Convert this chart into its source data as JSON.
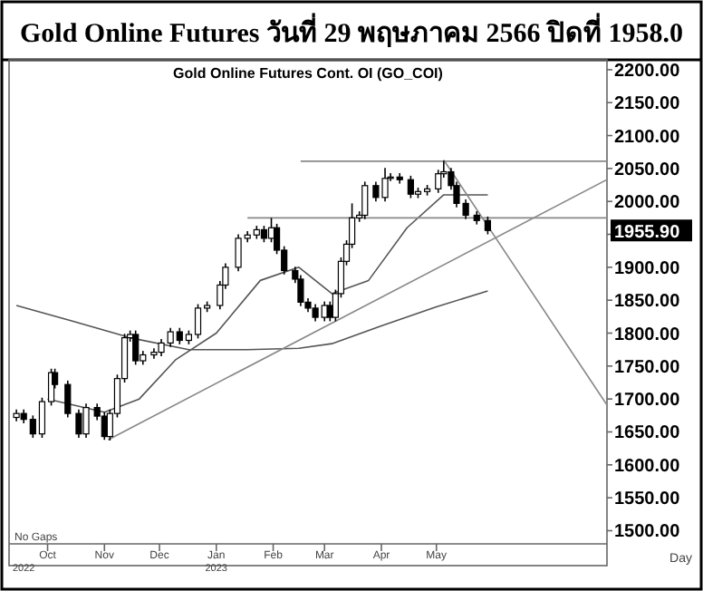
{
  "chart_data": {
    "type": "candlestick",
    "title": "Gold Online Futures วันที่ 29 พฤษภาคม 2566 ปิดที่ 1958.0",
    "subtitle": "Gold Online Futures Cont. OI (GO_COI)",
    "annotations": [
      "No Gaps",
      "Day",
      "2022",
      "2023",
      "1955.90"
    ],
    "x": [
      "2022-09-14",
      "2022-09-18",
      "2022-09-23",
      "2022-09-28",
      "2022-10-03",
      "2022-10-05",
      "2022-10-12",
      "2022-10-18",
      "2022-10-22",
      "2022-10-28",
      "2022-11-01",
      "2022-11-04",
      "2022-11-08",
      "2022-11-12",
      "2022-11-15",
      "2022-11-18",
      "2022-11-22",
      "2022-11-28",
      "2022-12-02",
      "2022-12-07",
      "2022-12-12",
      "2022-12-17",
      "2022-12-22",
      "2022-12-27",
      "2023-01-03",
      "2023-01-06",
      "2023-01-13",
      "2023-01-18",
      "2023-01-23",
      "2023-01-27",
      "2023-01-31",
      "2023-02-03",
      "2023-02-07",
      "2023-02-13",
      "2023-02-16",
      "2023-02-20",
      "2023-02-24",
      "2023-03-01",
      "2023-03-04",
      "2023-03-07",
      "2023-03-10",
      "2023-03-13",
      "2023-03-16",
      "2023-03-20",
      "2023-03-23",
      "2023-03-29",
      "2023-04-03",
      "2023-04-06",
      "2023-04-11",
      "2023-04-17",
      "2023-04-21",
      "2023-04-26",
      "2023-05-02",
      "2023-05-05",
      "2023-05-09",
      "2023-05-12",
      "2023-05-17",
      "2023-05-23",
      "2023-05-29"
    ],
    "ohlc": [
      [
        1672,
        1684,
        1666,
        1678
      ],
      [
        1678,
        1684,
        1663,
        1669
      ],
      [
        1669,
        1675,
        1641,
        1647
      ],
      [
        1647,
        1702,
        1641,
        1696
      ],
      [
        1696,
        1746,
        1690,
        1740
      ],
      [
        1740,
        1746,
        1716,
        1722
      ],
      [
        1722,
        1728,
        1672,
        1678
      ],
      [
        1678,
        1684,
        1641,
        1647
      ],
      [
        1647,
        1693,
        1641,
        1687
      ],
      [
        1687,
        1693,
        1668,
        1674
      ],
      [
        1674,
        1680,
        1638,
        1643
      ],
      [
        1643,
        1684,
        1637,
        1678
      ],
      [
        1678,
        1737,
        1672,
        1731
      ],
      [
        1731,
        1799,
        1725,
        1793
      ],
      [
        1793,
        1804,
        1787,
        1798
      ],
      [
        1798,
        1804,
        1752,
        1758
      ],
      [
        1758,
        1773,
        1752,
        1767
      ],
      [
        1767,
        1777,
        1761,
        1771
      ],
      [
        1771,
        1791,
        1765,
        1785
      ],
      [
        1785,
        1808,
        1779,
        1802
      ],
      [
        1802,
        1808,
        1783,
        1789
      ],
      [
        1789,
        1804,
        1783,
        1798
      ],
      [
        1798,
        1844,
        1792,
        1838
      ],
      [
        1838,
        1848,
        1832,
        1842
      ],
      [
        1842,
        1879,
        1836,
        1873
      ],
      [
        1873,
        1906,
        1867,
        1900
      ],
      [
        1900,
        1950,
        1894,
        1944
      ],
      [
        1944,
        1955,
        1938,
        1949
      ],
      [
        1949,
        1963,
        1943,
        1957
      ],
      [
        1957,
        1963,
        1938,
        1944
      ],
      [
        1944,
        1975,
        1938,
        1960
      ],
      [
        1960,
        1966,
        1920,
        1926
      ],
      [
        1926,
        1932,
        1889,
        1895
      ],
      [
        1895,
        1901,
        1876,
        1882
      ],
      [
        1882,
        1888,
        1841,
        1847
      ],
      [
        1847,
        1853,
        1832,
        1838
      ],
      [
        1838,
        1844,
        1818,
        1824
      ],
      [
        1824,
        1848,
        1818,
        1842
      ],
      [
        1842,
        1848,
        1818,
        1824
      ],
      [
        1824,
        1866,
        1818,
        1860
      ],
      [
        1860,
        1915,
        1854,
        1909
      ],
      [
        1909,
        1941,
        1903,
        1935
      ],
      [
        1935,
        1997,
        1929,
        1975
      ],
      [
        1975,
        1985,
        1969,
        1979
      ],
      [
        1979,
        2030,
        1973,
        2024
      ],
      [
        2024,
        2030,
        2000,
        2006
      ],
      [
        2006,
        2051,
        2000,
        2035
      ],
      [
        2035,
        2043,
        2031,
        2037
      ],
      [
        2037,
        2043,
        2027,
        2033
      ],
      [
        2033,
        2039,
        2005,
        2011
      ],
      [
        2011,
        2021,
        2005,
        2015
      ],
      [
        2015,
        2025,
        2009,
        2019
      ],
      [
        2019,
        2048,
        2013,
        2042
      ],
      [
        2042,
        2062,
        2036,
        2045
      ],
      [
        2045,
        2051,
        2018,
        2024
      ],
      [
        2024,
        2030,
        1991,
        1997
      ],
      [
        1997,
        2003,
        1973,
        1979
      ],
      [
        1979,
        1985,
        1965,
        1971
      ],
      [
        1971,
        1977,
        1950,
        1955.9
      ]
    ],
    "series": [
      {
        "type": "line",
        "color": "#555555",
        "x": [
          "2022-09-14",
          "2022-10-15",
          "2022-11-15",
          "2022-12-17",
          "2023-01-18",
          "2023-02-15",
          "2023-03-05",
          "2023-04-01",
          "2023-05-01",
          "2023-05-29"
        ],
        "values": [
          1842,
          1818,
          1793,
          1775,
          1775,
          1777,
          1784,
          1811,
          1840,
          1864
        ]
      },
      {
        "type": "line",
        "color": "#555555",
        "x": [
          "2022-10-01",
          "2022-11-01",
          "2022-11-20",
          "2022-12-10",
          "2023-01-01",
          "2023-01-25",
          "2023-02-15",
          "2023-03-05",
          "2023-03-25",
          "2023-04-15",
          "2023-05-05",
          "2023-05-29"
        ],
        "values": [
          1700,
          1680,
          1700,
          1760,
          1800,
          1880,
          1900,
          1860,
          1880,
          1960,
          2010,
          2010
        ]
      },
      {
        "type": "line",
        "color": "#888888",
        "x": [
          "2023-02-16",
          "2023-08-02"
        ],
        "values": [
          2061,
          2061
        ]
      },
      {
        "type": "line",
        "color": "#888888",
        "x": [
          "2023-01-18",
          "2023-08-02"
        ],
        "values": [
          1975,
          1975
        ]
      },
      {
        "type": "line",
        "color": "#888888",
        "x": [
          "2022-11-03",
          "2023-08-02"
        ],
        "values": [
          1638,
          2033
        ]
      },
      {
        "type": "line",
        "color": "#888888",
        "x": [
          "2023-05-05",
          "2023-08-02"
        ],
        "values": [
          2063,
          1691
        ]
      }
    ],
    "xlim": [
      "2022-09-10",
      "2023-08-02"
    ],
    "xticks": [
      {
        "value": "2022-10-01",
        "label": "Oct"
      },
      {
        "value": "2022-11-01",
        "label": "Nov"
      },
      {
        "value": "2022-12-01",
        "label": "Dec"
      },
      {
        "value": "2023-01-01",
        "label": "Jan"
      },
      {
        "value": "2023-02-01",
        "label": "Feb"
      },
      {
        "value": "2023-03-01",
        "label": "Mar"
      },
      {
        "value": "2023-04-01",
        "label": "Apr"
      },
      {
        "value": "2023-05-01",
        "label": "May"
      }
    ],
    "ylim": [
      1480,
      2215
    ],
    "yticks": [
      {
        "value": 1500,
        "label": "1500.00"
      },
      {
        "value": 1550,
        "label": "1550.00"
      },
      {
        "value": 1600,
        "label": "1600.00"
      },
      {
        "value": 1650,
        "label": "1650.00"
      },
      {
        "value": 1700,
        "label": "1700.00"
      },
      {
        "value": 1750,
        "label": "1750.00"
      },
      {
        "value": 1800,
        "label": "1800.00"
      },
      {
        "value": 1850,
        "label": "1850.00"
      },
      {
        "value": 1900,
        "label": "1900.00"
      },
      {
        "value": 1950,
        "label": null
      },
      {
        "value": 2000,
        "label": "2000.00"
      },
      {
        "value": 2050,
        "label": "2050.00"
      },
      {
        "value": 2100,
        "label": "2100.00"
      },
      {
        "value": 2150,
        "label": "2150.00"
      },
      {
        "value": 2200,
        "label": "2200.00"
      }
    ]
  }
}
